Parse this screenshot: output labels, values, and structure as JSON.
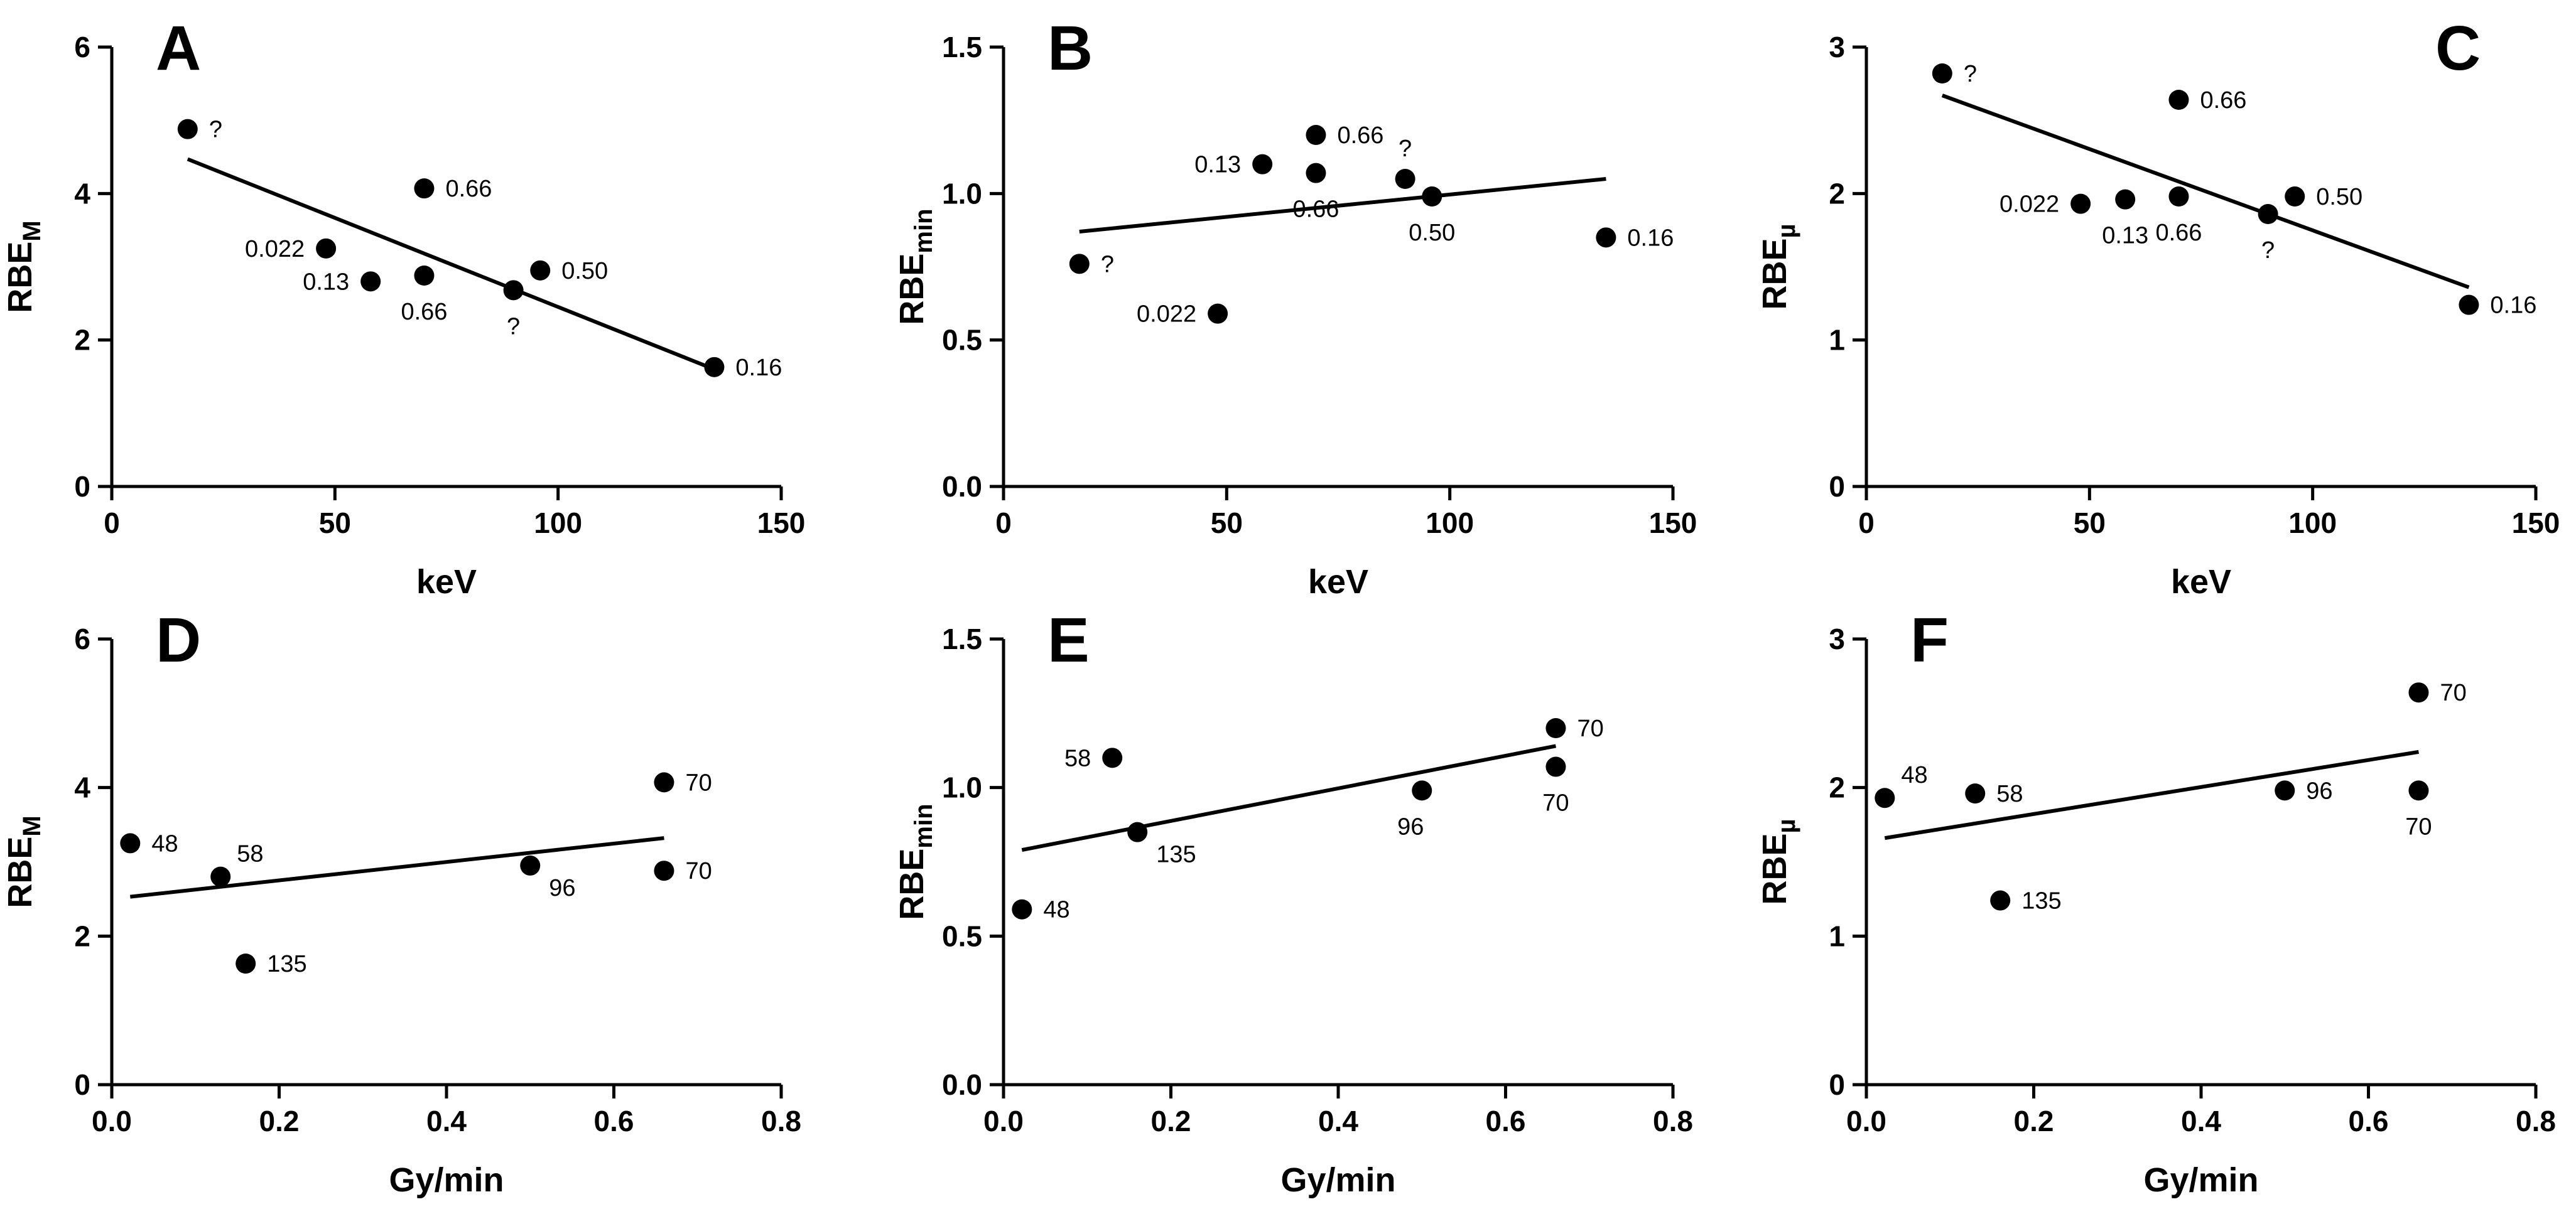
{
  "chart_data": [
    {
      "panel": "A",
      "type": "scatter",
      "xlabel": "keV",
      "ylabel": "RBE",
      "ylabel_sub": "M",
      "xlim": [
        0,
        150
      ],
      "ylim": [
        0,
        6
      ],
      "xticks": [
        0,
        50,
        100,
        150
      ],
      "yticks": [
        0,
        2,
        4,
        6
      ],
      "points": [
        {
          "x": 17,
          "y": 4.88,
          "label": "?",
          "pos": "right"
        },
        {
          "x": 48,
          "y": 3.25,
          "label": "0.022",
          "pos": "left"
        },
        {
          "x": 58,
          "y": 2.8,
          "label": "0.13",
          "pos": "left"
        },
        {
          "x": 70,
          "y": 4.07,
          "label": "0.66",
          "pos": "right"
        },
        {
          "x": 70,
          "y": 2.88,
          "label": "0.66",
          "pos": "below"
        },
        {
          "x": 90,
          "y": 2.68,
          "label": "?",
          "pos": "below"
        },
        {
          "x": 96,
          "y": 2.95,
          "label": "0.50",
          "pos": "right"
        },
        {
          "x": 135,
          "y": 1.63,
          "label": "0.16",
          "pos": "right"
        }
      ],
      "fit": {
        "x": [
          17,
          135
        ],
        "y": [
          4.47,
          1.6
        ]
      }
    },
    {
      "panel": "B",
      "type": "scatter",
      "xlabel": "keV",
      "ylabel": "RBE",
      "ylabel_sub": "min",
      "xlim": [
        0,
        150
      ],
      "ylim": [
        0,
        1.5
      ],
      "xticks": [
        0,
        50,
        100,
        150
      ],
      "yticks": [
        0.0,
        0.5,
        1.0,
        1.5
      ],
      "ytick_decimals": 1,
      "points": [
        {
          "x": 17,
          "y": 0.76,
          "label": "?",
          "pos": "right"
        },
        {
          "x": 48,
          "y": 0.59,
          "label": "0.022",
          "pos": "left"
        },
        {
          "x": 58,
          "y": 1.1,
          "label": "0.13",
          "pos": "left"
        },
        {
          "x": 70,
          "y": 1.2,
          "label": "0.66",
          "pos": "right"
        },
        {
          "x": 70,
          "y": 1.07,
          "label": "0.66",
          "pos": "below"
        },
        {
          "x": 90,
          "y": 1.05,
          "label": "?",
          "pos": "above"
        },
        {
          "x": 96,
          "y": 0.99,
          "label": "0.50",
          "pos": "below"
        },
        {
          "x": 135,
          "y": 0.85,
          "label": "0.16",
          "pos": "right"
        }
      ],
      "fit": {
        "x": [
          17,
          135
        ],
        "y": [
          0.87,
          1.05
        ]
      }
    },
    {
      "panel": "C",
      "type": "scatter",
      "xlabel": "keV",
      "ylabel": "RBE",
      "ylabel_sub": "µ",
      "xlim": [
        0,
        150
      ],
      "ylim": [
        0,
        3
      ],
      "xticks": [
        0,
        50,
        100,
        150
      ],
      "yticks": [
        0,
        1,
        2,
        3
      ],
      "points": [
        {
          "x": 17,
          "y": 2.82,
          "label": "?",
          "pos": "right"
        },
        {
          "x": 48,
          "y": 1.93,
          "label": "0.022",
          "pos": "left"
        },
        {
          "x": 58,
          "y": 1.96,
          "label": "0.13",
          "pos": "below"
        },
        {
          "x": 70,
          "y": 2.64,
          "label": "0.66",
          "pos": "right"
        },
        {
          "x": 70,
          "y": 1.98,
          "label": "0.66",
          "pos": "below"
        },
        {
          "x": 90,
          "y": 1.86,
          "label": "?",
          "pos": "below"
        },
        {
          "x": 96,
          "y": 1.98,
          "label": "0.50",
          "pos": "right"
        },
        {
          "x": 135,
          "y": 1.24,
          "label": "0.16",
          "pos": "right"
        }
      ],
      "fit": {
        "x": [
          17,
          135
        ],
        "y": [
          2.67,
          1.36
        ]
      }
    },
    {
      "panel": "D",
      "type": "scatter",
      "xlabel": "Gy/min",
      "ylabel": "RBE",
      "ylabel_sub": "M",
      "xlim": [
        0,
        0.8
      ],
      "ylim": [
        0,
        6
      ],
      "xticks": [
        0.0,
        0.2,
        0.4,
        0.6,
        0.8
      ],
      "xtick_decimals": 1,
      "yticks": [
        0,
        2,
        4,
        6
      ],
      "points": [
        {
          "x": 0.022,
          "y": 3.25,
          "label": "48",
          "pos": "right"
        },
        {
          "x": 0.13,
          "y": 2.8,
          "label": "58",
          "pos": "upright"
        },
        {
          "x": 0.16,
          "y": 1.63,
          "label": "135",
          "pos": "right"
        },
        {
          "x": 0.5,
          "y": 2.95,
          "label": "96",
          "pos": "downright"
        },
        {
          "x": 0.66,
          "y": 4.07,
          "label": "70",
          "pos": "right"
        },
        {
          "x": 0.66,
          "y": 2.88,
          "label": "70",
          "pos": "right"
        }
      ],
      "fit": {
        "x": [
          0.022,
          0.66
        ],
        "y": [
          2.53,
          3.32
        ]
      }
    },
    {
      "panel": "E",
      "type": "scatter",
      "xlabel": "Gy/min",
      "ylabel": "RBE",
      "ylabel_sub": "min",
      "xlim": [
        0,
        0.8
      ],
      "ylim": [
        0,
        1.5
      ],
      "xticks": [
        0.0,
        0.2,
        0.4,
        0.6,
        0.8
      ],
      "xtick_decimals": 1,
      "yticks": [
        0.0,
        0.5,
        1.0,
        1.5
      ],
      "ytick_decimals": 1,
      "points": [
        {
          "x": 0.022,
          "y": 0.59,
          "label": "48",
          "pos": "right"
        },
        {
          "x": 0.13,
          "y": 1.1,
          "label": "58",
          "pos": "left"
        },
        {
          "x": 0.16,
          "y": 0.85,
          "label": "135",
          "pos": "downright"
        },
        {
          "x": 0.5,
          "y": 0.99,
          "label": "96",
          "pos": "belowleft"
        },
        {
          "x": 0.66,
          "y": 1.2,
          "label": "70",
          "pos": "right"
        },
        {
          "x": 0.66,
          "y": 1.07,
          "label": "70",
          "pos": "below"
        }
      ],
      "fit": {
        "x": [
          0.022,
          0.66
        ],
        "y": [
          0.79,
          1.14
        ]
      }
    },
    {
      "panel": "F",
      "type": "scatter",
      "xlabel": "Gy/min",
      "ylabel": "RBE",
      "ylabel_sub": "µ",
      "xlim": [
        0,
        0.8
      ],
      "ylim": [
        0,
        3
      ],
      "xticks": [
        0.0,
        0.2,
        0.4,
        0.6,
        0.8
      ],
      "xtick_decimals": 1,
      "yticks": [
        0,
        1,
        2,
        3
      ],
      "points": [
        {
          "x": 0.022,
          "y": 1.93,
          "label": "48",
          "pos": "upright"
        },
        {
          "x": 0.13,
          "y": 1.96,
          "label": "58",
          "pos": "right"
        },
        {
          "x": 0.16,
          "y": 1.24,
          "label": "135",
          "pos": "right"
        },
        {
          "x": 0.5,
          "y": 1.98,
          "label": "96",
          "pos": "right"
        },
        {
          "x": 0.66,
          "y": 2.64,
          "label": "70",
          "pos": "right"
        },
        {
          "x": 0.66,
          "y": 1.98,
          "label": "70",
          "pos": "below"
        }
      ],
      "fit": {
        "x": [
          0.022,
          0.66
        ],
        "y": [
          1.66,
          2.24
        ]
      }
    }
  ]
}
